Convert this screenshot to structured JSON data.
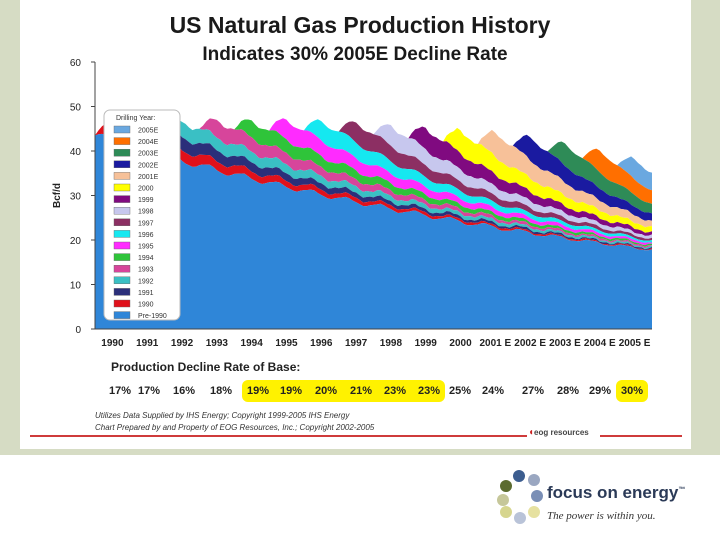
{
  "title": "US Natural Gas Production History",
  "subtitle": "Indicates 30% 2005E Decline Rate",
  "chart_data": {
    "type": "area",
    "ylabel": "Bcf/d",
    "ylim": [
      0,
      60
    ],
    "yticks": [
      "0",
      "10",
      "20",
      "30",
      "40",
      "50",
      "60"
    ],
    "x_categories": [
      "1990",
      "1991",
      "1992",
      "1993",
      "1994",
      "1995",
      "1996",
      "1997",
      "1998",
      "1999",
      "2000",
      "2001 E",
      "2002 E",
      "2003 E",
      "2004 E",
      "2005 E"
    ],
    "legend_title": "Drilling Year:",
    "series": [
      {
        "name": "Pre-1990",
        "color": "#2f86d8",
        "start": 0,
        "level": 43.5,
        "decline": 0.056
      },
      {
        "name": "1990",
        "color": "#e0111b",
        "start": 0,
        "level": 4,
        "decline": 0.17
      },
      {
        "name": "1991",
        "color": "#2b2f7a",
        "start": 1,
        "level": 4,
        "decline": 0.17
      },
      {
        "name": "1992",
        "color": "#3ac0c4",
        "start": 2,
        "level": 3.8,
        "decline": 0.16
      },
      {
        "name": "1993",
        "color": "#d7459b",
        "start": 3,
        "level": 4.3,
        "decline": 0.19
      },
      {
        "name": "1994",
        "color": "#2fc43a",
        "start": 4,
        "level": 4.3,
        "decline": 0.19
      },
      {
        "name": "1995",
        "color": "#ff2bff",
        "start": 5,
        "level": 5,
        "decline": 0.2
      },
      {
        "name": "1996",
        "color": "#15e8f0",
        "start": 6,
        "level": 5,
        "decline": 0.21
      },
      {
        "name": "1997",
        "color": "#8c2f63",
        "start": 7,
        "level": 5.2,
        "decline": 0.23
      },
      {
        "name": "1998",
        "color": "#c7c7ee",
        "start": 8,
        "level": 5.2,
        "decline": 0.23
      },
      {
        "name": "1999",
        "color": "#800a80",
        "start": 9,
        "level": 5.6,
        "decline": 0.25
      },
      {
        "name": "2000",
        "color": "#ffff00",
        "start": 10,
        "level": 6,
        "decline": 0.24
      },
      {
        "name": "2001E",
        "color": "#f7c199",
        "start": 11,
        "level": 6.5,
        "decline": 0.27
      },
      {
        "name": "2002E",
        "color": "#1a1aa0",
        "start": 12,
        "level": 6.2,
        "decline": 0.29
      },
      {
        "name": "2003E",
        "color": "#2e8b57",
        "start": 13,
        "level": 6,
        "decline": 0.29
      },
      {
        "name": "2004E",
        "color": "#ff6f00",
        "start": 14,
        "level": 5.8,
        "decline": 0.29
      },
      {
        "name": "2005E",
        "color": "#6aa8e0",
        "start": 15,
        "level": 5.5,
        "decline": 0.3
      }
    ]
  },
  "decline": {
    "label": "Production Decline Rate of Base:",
    "rates": [
      {
        "value": "17%",
        "highlight": false
      },
      {
        "value": "17%",
        "highlight": false
      },
      {
        "value": "16%",
        "highlight": false
      },
      {
        "value": "18%",
        "highlight": false
      },
      {
        "value": "19%",
        "highlight": true
      },
      {
        "value": "19%",
        "highlight": true
      },
      {
        "value": "20%",
        "highlight": true
      },
      {
        "value": "21%",
        "highlight": true
      },
      {
        "value": "23%",
        "highlight": true
      },
      {
        "value": "23%",
        "highlight": true
      },
      {
        "value": "25%",
        "highlight": false
      },
      {
        "value": "24%",
        "highlight": false
      },
      {
        "value": "27%",
        "highlight": false
      },
      {
        "value": "28%",
        "highlight": false
      },
      {
        "value": "29%",
        "highlight": false
      },
      {
        "value": "30%",
        "highlight": true
      }
    ]
  },
  "credits": {
    "line1": "Utilizes Data Supplied by IHS Energy; Copyright 1999-2005 IHS Energy",
    "line2": "Chart Prepared by and Property of EOG Resources, Inc.; Copyright 2002-2005"
  },
  "eog_logo": "eog resources",
  "logo": {
    "name": "focus on energy",
    "tm": "™",
    "tagline": "The power is within you.",
    "dot_colors": [
      "#3c5d8f",
      "#9aa7c1",
      "#5b6b2f",
      "#c6c79a",
      "#7a8fb6",
      "#d6d58e",
      "#b9c3d8",
      "#e6e1a0"
    ]
  }
}
